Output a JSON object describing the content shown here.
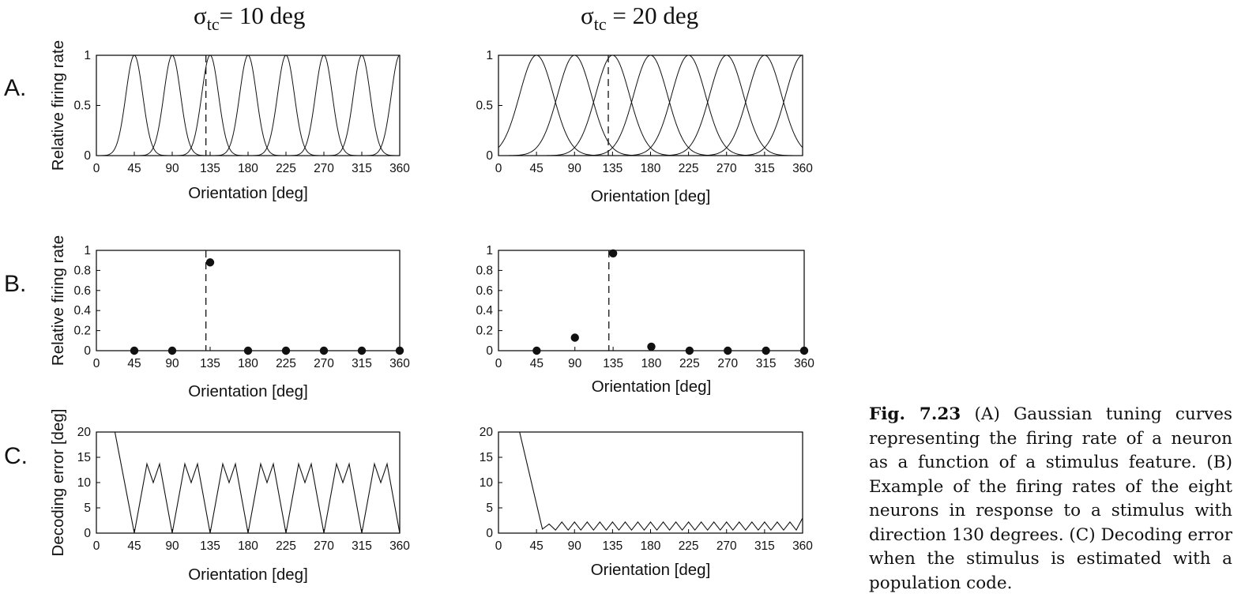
{
  "columns": [
    {
      "sigma_base": "σ",
      "sigma_sub": "tc",
      "sigma_rest": "= 10 deg"
    },
    {
      "sigma_base": "σ",
      "sigma_sub": "tc",
      "sigma_rest": " = 20 deg"
    }
  ],
  "row_labels": [
    "A.",
    "B.",
    "C."
  ],
  "caption": {
    "label": "Fig. 7.23",
    "text": " (A) Gaussian tuning curves representing the firing rate of a neuron as a function of a stimulus feature. (B) Example of the firing rates of the eight neurons in response to a stimulus with direction 130 degrees. (C) Decoding error when the stimulus is estimated with a population code."
  },
  "colors": {
    "line": "#111111",
    "axis": "#000000"
  },
  "chart_data": [
    {
      "id": "A1",
      "type": "line",
      "row": 0,
      "col": 0,
      "sigma": 10,
      "xlabel": "Orientation [deg]",
      "ylabel": "Relative firing rate",
      "xlim": [
        0,
        360
      ],
      "ylim": [
        0,
        1
      ],
      "xticks": [
        0,
        45,
        90,
        135,
        180,
        225,
        270,
        315,
        360
      ],
      "yticks": [
        0,
        0.5,
        1
      ],
      "yticklabels": [
        "0",
        "0.5",
        "1"
      ],
      "centers": [
        45,
        90,
        135,
        180,
        225,
        270,
        315,
        360
      ],
      "stimulus": 130
    },
    {
      "id": "A2",
      "type": "line",
      "row": 0,
      "col": 1,
      "sigma": 20,
      "xlabel": "Orientation [deg]",
      "ylabel": "",
      "xlim": [
        0,
        360
      ],
      "ylim": [
        0,
        1
      ],
      "xticks": [
        0,
        45,
        90,
        135,
        180,
        225,
        270,
        315,
        360
      ],
      "yticks": [
        0,
        0.5,
        1
      ],
      "yticklabels": [
        "0",
        "0.5",
        "1"
      ],
      "centers": [
        45,
        90,
        135,
        180,
        225,
        270,
        315,
        360
      ],
      "stimulus": 130
    },
    {
      "id": "B1",
      "type": "scatter",
      "row": 1,
      "col": 0,
      "xlabel": "Orientation [deg]",
      "ylabel": "Relative firing rate",
      "xlim": [
        0,
        360
      ],
      "ylim": [
        0,
        1
      ],
      "xticks": [
        0,
        45,
        90,
        135,
        180,
        225,
        270,
        315,
        360
      ],
      "yticks": [
        0,
        0.2,
        0.4,
        0.6,
        0.8,
        1
      ],
      "yticklabels": [
        "0",
        "0.2",
        "0.4",
        "0.6",
        "0.8",
        "1"
      ],
      "x": [
        45,
        90,
        135,
        180,
        225,
        270,
        315,
        360
      ],
      "y": [
        0,
        0,
        0.88,
        0,
        0,
        0,
        0,
        0
      ],
      "stimulus": 130
    },
    {
      "id": "B2",
      "type": "scatter",
      "row": 1,
      "col": 1,
      "xlabel": "Orientation [deg]",
      "ylabel": "",
      "xlim": [
        0,
        360
      ],
      "ylim": [
        0,
        1
      ],
      "xticks": [
        0,
        45,
        90,
        135,
        180,
        225,
        270,
        315,
        360
      ],
      "yticks": [
        0,
        0.2,
        0.4,
        0.6,
        0.8,
        1
      ],
      "yticklabels": [
        "0",
        "0.2",
        "0.4",
        "0.6",
        "0.8",
        "1"
      ],
      "x": [
        45,
        90,
        135,
        180,
        225,
        270,
        315,
        360
      ],
      "y": [
        0,
        0.13,
        0.97,
        0.04,
        0,
        0,
        0,
        0
      ],
      "stimulus": 130
    },
    {
      "id": "C1",
      "type": "line",
      "row": 2,
      "col": 0,
      "xlabel": "Orientation [deg]",
      "ylabel": "Decoding error [deg]",
      "xlim": [
        0,
        360
      ],
      "ylim": [
        0,
        20
      ],
      "xticks": [
        0,
        45,
        90,
        135,
        180,
        225,
        270,
        315,
        360
      ],
      "yticks": [
        0,
        5,
        10,
        15,
        20
      ],
      "yticklabels": [
        "0",
        "5",
        "10",
        "15",
        "20"
      ],
      "x": [
        22,
        45,
        60,
        67.5,
        75,
        90,
        105,
        112.5,
        120,
        135,
        150,
        157.5,
        165,
        180,
        195,
        202.5,
        210,
        225,
        240,
        247.5,
        255,
        270,
        285,
        292.5,
        300,
        315,
        330,
        337.5,
        345,
        360
      ],
      "y": [
        20,
        0,
        13.7,
        10,
        13.7,
        0,
        13.7,
        10,
        13.7,
        0,
        13.7,
        10,
        13.7,
        0,
        13.7,
        10,
        13.7,
        0,
        13.7,
        10,
        13.7,
        0,
        13.7,
        10,
        13.7,
        0,
        13.7,
        10,
        13.7,
        0
      ]
    },
    {
      "id": "C2",
      "type": "line",
      "row": 2,
      "col": 1,
      "xlabel": "Orientation [deg]",
      "ylabel": "",
      "xlim": [
        0,
        360
      ],
      "ylim": [
        0,
        20
      ],
      "xticks": [
        0,
        45,
        90,
        135,
        180,
        225,
        270,
        315,
        360
      ],
      "yticks": [
        0,
        5,
        10,
        15,
        20
      ],
      "yticklabels": [
        "0",
        "5",
        "10",
        "15",
        "20"
      ],
      "x": [
        25,
        52,
        60,
        67.5,
        75,
        82.5,
        90,
        97.5,
        105,
        112.5,
        120,
        127.5,
        135,
        142.5,
        150,
        157.5,
        165,
        172.5,
        180,
        187.5,
        195,
        202.5,
        210,
        217.5,
        225,
        232.5,
        240,
        247.5,
        255,
        262.5,
        270,
        277.5,
        285,
        292.5,
        300,
        307.5,
        315,
        322.5,
        330,
        337.5,
        345,
        352.5,
        360
      ],
      "y": [
        20,
        0.8,
        1.8,
        0.6,
        2.2,
        0.6,
        2.2,
        0.6,
        2.2,
        0.6,
        2.2,
        0.6,
        2.2,
        0.6,
        2.2,
        0.6,
        2.2,
        0.6,
        2.2,
        0.6,
        2.2,
        0.6,
        2.2,
        0.6,
        2.2,
        0.6,
        2.2,
        0.6,
        2.2,
        0.6,
        2.2,
        0.6,
        2.2,
        0.6,
        2.2,
        0.6,
        2.2,
        0.6,
        2.2,
        0.6,
        2.2,
        0.6,
        3
      ]
    }
  ]
}
